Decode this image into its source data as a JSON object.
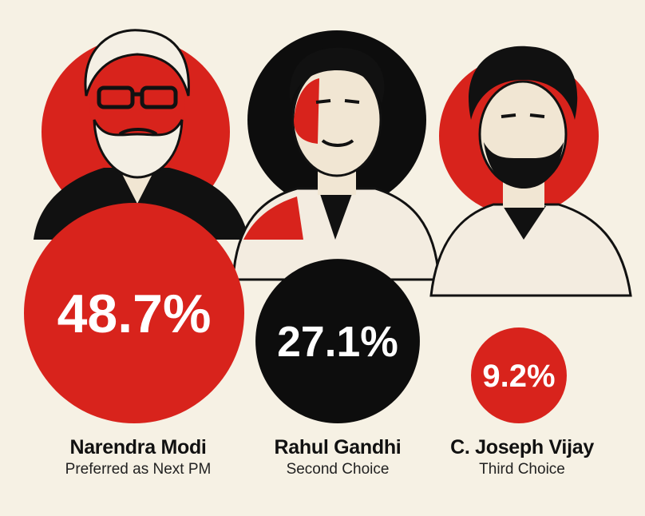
{
  "colors": {
    "background": "#f6f1e4",
    "red": "#d8231c",
    "black": "#0d0d0d",
    "white": "#ffffff",
    "skin": "#f1e6d3"
  },
  "chart_data": {
    "type": "bubble",
    "title": "",
    "unit": "%",
    "categories": [
      "Narendra Modi",
      "Rahul Gandhi",
      "C. Joseph Vijay"
    ],
    "values": [
      48.7,
      27.1,
      9.2
    ],
    "value_labels": [
      "48.7%",
      "27.1%",
      "9.2%"
    ],
    "subtitles": [
      "Preferred as Next PM",
      "Second Choice",
      "Third Choice"
    ],
    "bubble_colors": [
      "#d8231c",
      "#0d0d0d",
      "#d8231c"
    ]
  }
}
